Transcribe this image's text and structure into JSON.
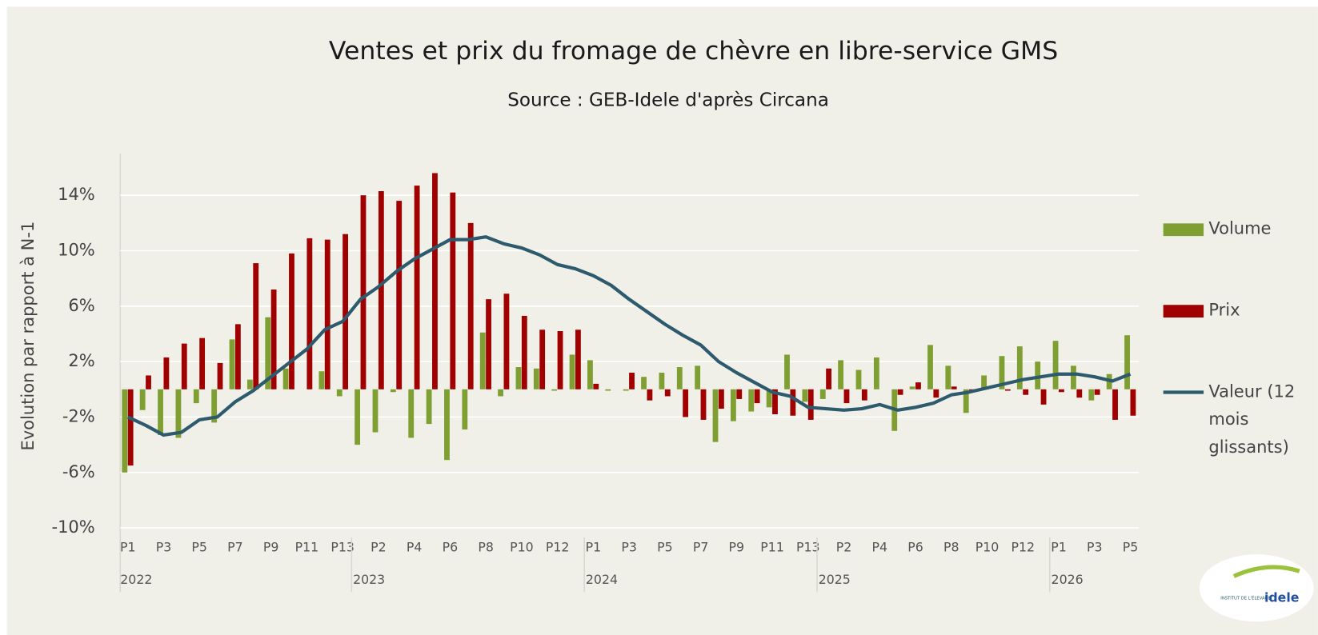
{
  "chart_data": {
    "type": "bar-line",
    "title": "Ventes et prix du fromage de chèvre en libre-service GMS",
    "subtitle": "Source : GEB-Idele d'après Circana",
    "y_axis_label": "Evolution par rapport à N-1",
    "groups": [
      {
        "name": "2022",
        "categories": [
          "P1",
          null,
          "P3",
          null,
          "P5",
          null,
          "P7",
          null,
          "P9",
          null,
          "P11",
          null,
          "P13"
        ]
      },
      {
        "name": "2023",
        "categories": [
          null,
          "P2",
          null,
          "P4",
          null,
          "P6",
          null,
          "P8",
          null,
          "P10",
          null,
          "P12",
          null
        ]
      },
      {
        "name": "2024",
        "categories": [
          "P1",
          null,
          "P3",
          null,
          "P5",
          null,
          "P7",
          null,
          "P9",
          null,
          "P11",
          null,
          "P13"
        ]
      },
      {
        "name": "2025",
        "categories": [
          null,
          "P2",
          null,
          "P4",
          null,
          "P6",
          null,
          "P8",
          null,
          "P10",
          null,
          "P12",
          null
        ]
      },
      {
        "name": "2026",
        "categories": [
          "P1",
          null,
          "P3",
          null,
          "P5"
        ]
      }
    ],
    "series": [
      {
        "name": "Volume",
        "type": "bar",
        "color": "#7f9f32",
        "values": [
          -6.0,
          -1.5,
          -3.3,
          -3.5,
          -1.0,
          -2.4,
          3.6,
          0.7,
          5.2,
          1.5,
          0.0,
          1.3,
          -0.5,
          -4.0,
          -3.1,
          -0.2,
          -3.5,
          -2.5,
          -5.1,
          -2.9,
          4.1,
          -0.5,
          1.6,
          1.5,
          -0.1,
          2.5,
          2.1,
          -0.1,
          -0.1,
          0.9,
          1.2,
          1.6,
          1.7,
          -3.8,
          -2.3,
          -1.6,
          -1.3,
          2.5,
          -0.9,
          -0.7,
          2.1,
          1.4,
          2.3,
          -3.0,
          0.2,
          3.2,
          1.7,
          -1.7,
          1.0,
          2.4,
          3.1,
          2.0,
          3.5,
          1.7,
          -0.8,
          1.1,
          3.9
        ]
      },
      {
        "name": "Prix",
        "type": "bar",
        "color": "#a00000",
        "values": [
          -5.5,
          1.0,
          2.3,
          3.3,
          3.7,
          1.9,
          4.7,
          9.1,
          7.2,
          9.8,
          10.9,
          10.8,
          11.2,
          14.0,
          14.3,
          13.6,
          14.7,
          15.6,
          14.2,
          12.0,
          6.5,
          6.9,
          5.3,
          4.3,
          4.2,
          4.3,
          0.4,
          0.0,
          1.2,
          -0.8,
          -0.5,
          -2.0,
          -2.2,
          -1.4,
          -0.7,
          -1.0,
          -1.8,
          -1.9,
          -2.2,
          1.5,
          -1.0,
          -0.8,
          0.0,
          -0.4,
          0.5,
          -0.6,
          0.2,
          -0.2,
          0.0,
          -0.1,
          -0.4,
          -1.1,
          -0.2,
          -0.6,
          -0.4,
          -2.2,
          -1.9
        ]
      },
      {
        "name": "Valeur (12 mois glissants)",
        "type": "line",
        "color": "#2e5a6e",
        "values": [
          -2.0,
          -2.6,
          -3.3,
          -3.1,
          -2.2,
          -2.0,
          -0.9,
          -0.1,
          0.9,
          1.9,
          2.9,
          4.3,
          4.9,
          6.5,
          7.4,
          8.5,
          9.4,
          10.1,
          10.8,
          10.8,
          11.0,
          10.5,
          10.2,
          9.7,
          9.0,
          8.7,
          8.2,
          7.5,
          6.5,
          5.6,
          4.7,
          3.9,
          3.2,
          2.0,
          1.2,
          0.5,
          -0.2,
          -0.5,
          -1.3,
          -1.4,
          -1.5,
          -1.4,
          -1.1,
          -1.5,
          -1.3,
          -1.0,
          -0.4,
          -0.2,
          0.1,
          0.4,
          0.7,
          0.9,
          1.1,
          1.1,
          0.9,
          0.6,
          1.1
        ]
      }
    ],
    "ylim": [
      -11,
      17
    ],
    "yticks": [
      {
        "value": -10,
        "label": "-10%"
      },
      {
        "value": -6,
        "label": "-6%"
      },
      {
        "value": -2,
        "label": "-2%"
      },
      {
        "value": 2,
        "label": "2%"
      },
      {
        "value": 6,
        "label": "6%"
      },
      {
        "value": 10,
        "label": "10%"
      },
      {
        "value": 14,
        "label": "14%"
      }
    ],
    "grid": true,
    "legend": "right",
    "logo": {
      "top": "INSTITUT DE L'ÉLEVAGE",
      "name": "idele"
    }
  }
}
